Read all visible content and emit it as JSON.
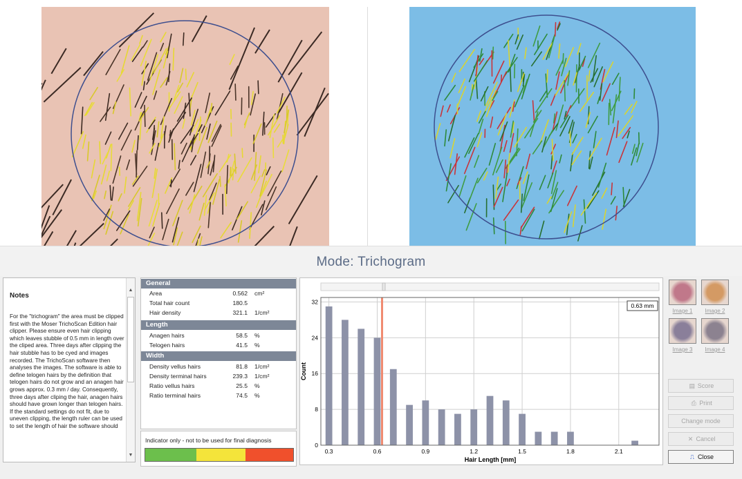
{
  "mode_title": "Mode: Trichogram",
  "notes": {
    "title": "Notes",
    "body": "For the \"trichogram\" the area must be clipped first with the Moser TrichoScan Edition hair clipper. Please ensure even hair clipping which leaves stubble of 0.5 mm in length over the cliped area. Three days after clipping the hair stubble has to be cyed and images recorded. The TrichoScan software then analyses the images. The software is able to define telogen hairs by the definition that telogen hairs do not grow and an anagen hair grows approx. 0.3 mm / day. Consequently, three days after cliping the hair, anagen hairs should have grown longer than telogen hairs. If the standard settings do not fit, due to uneven clipping, the length ruler can be used to set the length of hair the software should",
    "scroll_up": "▲",
    "scroll_down": "▼"
  },
  "stats": {
    "general": {
      "header": "General",
      "rows": [
        {
          "label": "Area",
          "value": "0.562",
          "unit": "cm²"
        },
        {
          "label": "Total hair count",
          "value": "180.5",
          "unit": ""
        },
        {
          "label": "Hair density",
          "value": "321.1",
          "unit": "1/cm²"
        }
      ]
    },
    "length": {
      "header": "Length",
      "rows": [
        {
          "label": "Anagen hairs",
          "value": "58.5",
          "unit": "%"
        },
        {
          "label": "Telogen hairs",
          "value": "41.5",
          "unit": "%"
        }
      ]
    },
    "width": {
      "header": "Width",
      "rows": [
        {
          "label": "Density vellus hairs",
          "value": "81.8",
          "unit": "1/cm²"
        },
        {
          "label": "Density terminal hairs",
          "value": "239.3",
          "unit": "1/cm²"
        },
        {
          "label": "Ratio vellus hairs",
          "value": "25.5",
          "unit": "%"
        },
        {
          "label": "Ratio terminal hairs",
          "value": "74.5",
          "unit": "%"
        }
      ]
    }
  },
  "indicator": {
    "text": "Indicator only - not to be used for final diagnosis",
    "colors": [
      "#6cbf4c",
      "#f4e43a",
      "#f0502c"
    ]
  },
  "thumbnails": [
    {
      "label": "Image 1",
      "color": "#c0788a"
    },
    {
      "label": "Image 2",
      "color": "#d49a64"
    },
    {
      "label": "Image 3",
      "color": "#8a7f9a"
    },
    {
      "label": "Image 4",
      "color": "#8c8290"
    }
  ],
  "buttons": {
    "score": "Score",
    "print": "Print",
    "change_mode": "Change mode",
    "cancel": "Cancel",
    "close": "Close"
  },
  "icons": {
    "score": "▤",
    "print": "⎙",
    "cancel": "✕",
    "close": "⎍"
  },
  "chart_data": {
    "type": "bar",
    "xlabel": "Hair Length [mm]",
    "ylabel": "Count",
    "xlim": [
      0.25,
      2.35
    ],
    "ylim": [
      0,
      33
    ],
    "x_ticks": [
      0.3,
      0.6,
      0.9,
      1.2,
      1.5,
      1.8,
      2.1
    ],
    "x_tick_labels": [
      "0.3",
      "0.6",
      "0.9",
      "1.2",
      "1.5",
      "1.8",
      "2.1"
    ],
    "y_ticks": [
      0,
      8,
      16,
      24,
      32
    ],
    "y_tick_labels": [
      "0",
      "8",
      "16",
      "24",
      "32"
    ],
    "x": [
      0.3,
      0.4,
      0.5,
      0.6,
      0.7,
      0.8,
      0.9,
      1.0,
      1.1,
      1.2,
      1.3,
      1.4,
      1.5,
      1.6,
      1.7,
      1.8,
      2.2
    ],
    "values": [
      31,
      28,
      26,
      24,
      17,
      9,
      10,
      8,
      7,
      8,
      11,
      10,
      7,
      3,
      3,
      3,
      1
    ],
    "marker_x": 0.63,
    "marker_label": "0.63 mm",
    "bar_color": "#8d92a8",
    "marker_color": "#f08a70",
    "grid": true
  }
}
